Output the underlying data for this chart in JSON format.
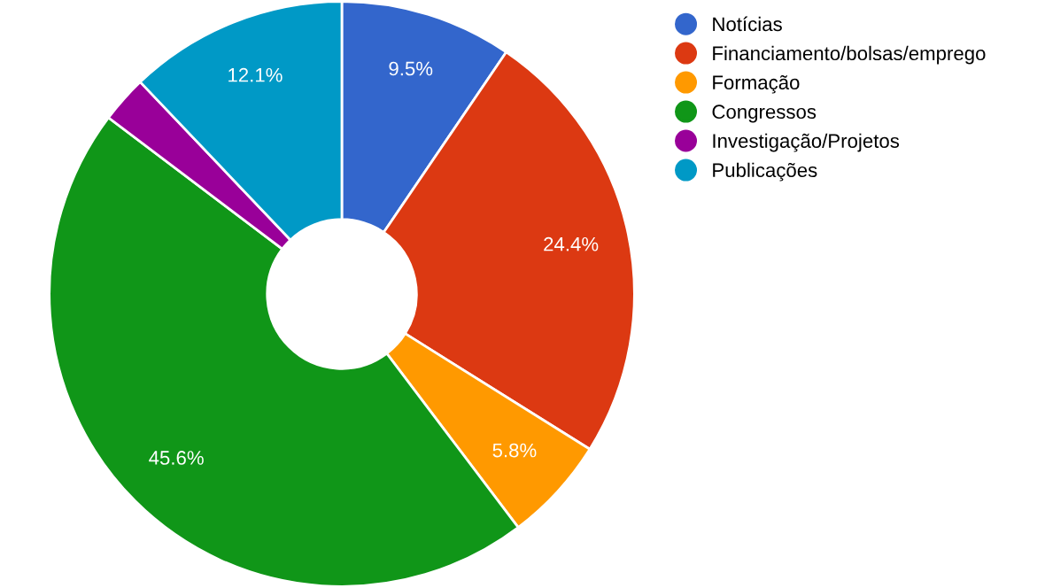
{
  "chart_data": {
    "type": "donut",
    "categories": [
      "Notícias",
      "Financiamento/bolsas/emprego",
      "Formação",
      "Congressos",
      "Investigação/Projetos",
      "Publicações"
    ],
    "values": [
      9.5,
      24.4,
      5.8,
      45.6,
      2.6,
      12.1
    ],
    "colors": [
      "#3366cc",
      "#dc3912",
      "#ff9900",
      "#109618",
      "#990099",
      "#0099c6"
    ],
    "value_labels": [
      "9.5%",
      "24.4%",
      "5.8%",
      "45.6%",
      null,
      "12.1%"
    ],
    "legend": "top right"
  }
}
